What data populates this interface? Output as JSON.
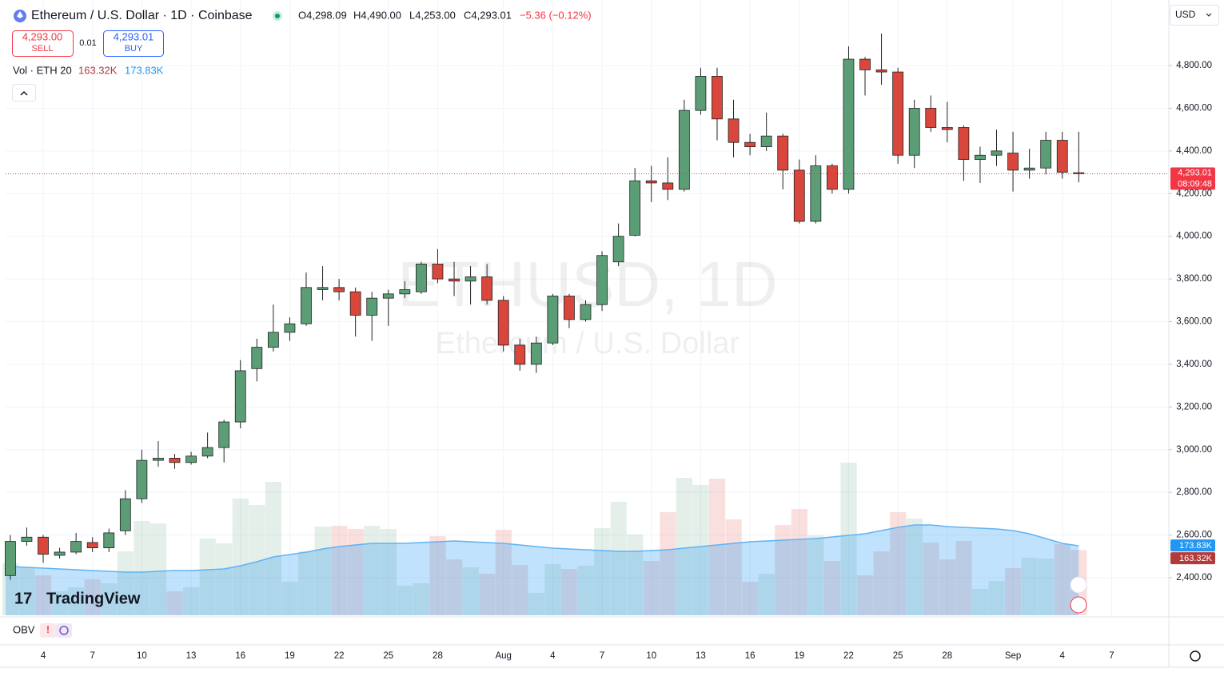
{
  "header": {
    "symbol": "Ethereum / U.S. Dollar · 1D · Coinbase",
    "open": "O4,298.09",
    "high": "H4,490.00",
    "low": "L4,253.00",
    "close": "C4,293.01",
    "change": "−5.36 (−0.12%)",
    "sell_price": "4,293.00",
    "sell": "SELL",
    "spread": "0.01",
    "buy_price": "4,293.01",
    "buy": "BUY",
    "volume_title": "Vol · ETH 20",
    "volume": "163.32K",
    "volume_ma": "173.83K",
    "currency": "USD",
    "watermark_symbol": "ETHUSD, 1D",
    "watermark_name": "Ethereum / U.S. Dollar",
    "brand": "TradingView",
    "indicator": "OBV",
    "countdown": "08:09:48"
  },
  "chart_data": {
    "type": "candlestick",
    "categories": [
      null,
      null,
      "4",
      null,
      null,
      "7",
      null,
      null,
      "10",
      null,
      null,
      "13",
      null,
      null,
      "16",
      null,
      null,
      "19",
      null,
      null,
      "22",
      null,
      null,
      "25",
      null,
      null,
      "28",
      null,
      null,
      null,
      "Aug",
      null,
      null,
      "4",
      null,
      null,
      "7",
      null,
      null,
      "10",
      null,
      null,
      "13",
      null,
      null,
      "16",
      null,
      null,
      "19",
      null,
      null,
      "22",
      null,
      null,
      "25",
      null,
      null,
      "28",
      null,
      null,
      null,
      "Sep",
      null,
      null,
      "4",
      null
    ],
    "forward_categories": [
      null,
      "7"
    ],
    "open": [
      2410,
      2570,
      2590,
      2505,
      2520,
      2565,
      2540,
      2620,
      2770,
      2950,
      2960,
      2940,
      2970,
      3010,
      3130,
      3380,
      3480,
      3550,
      3590,
      3750,
      3760,
      3740,
      3630,
      3710,
      3730,
      3740,
      3870,
      3800,
      3790,
      3810,
      3700,
      3490,
      3400,
      3500,
      3720,
      3610,
      3680,
      3880,
      4005,
      4260,
      4250,
      4220,
      4590,
      4750,
      4550,
      4440,
      4420,
      4470,
      4310,
      4070,
      4330,
      4220,
      4830,
      4780,
      4770,
      4380,
      4600,
      4510,
      4510,
      4360,
      4380,
      4390,
      4310,
      4320,
      4450,
      4298.09
    ],
    "high": [
      2600,
      2635,
      2600,
      2540,
      2610,
      2590,
      2630,
      2810,
      3000,
      3040,
      2980,
      2990,
      3080,
      3140,
      3420,
      3520,
      3680,
      3620,
      3830,
      3860,
      3800,
      3760,
      3740,
      3750,
      3790,
      3880,
      3940,
      3880,
      3860,
      3870,
      3720,
      3520,
      3530,
      3730,
      3730,
      3700,
      3930,
      4060,
      4320,
      4330,
      4370,
      4640,
      4790,
      4790,
      4640,
      4480,
      4580,
      4480,
      4360,
      4380,
      4340,
      4890,
      4840,
      4950,
      4790,
      4640,
      4660,
      4630,
      4520,
      4420,
      4500,
      4490,
      4410,
      4490,
      4490,
      4490
    ],
    "low": [
      2390,
      2550,
      2470,
      2490,
      2510,
      2520,
      2520,
      2600,
      2750,
      2920,
      2910,
      2930,
      2960,
      2940,
      3100,
      3320,
      3460,
      3510,
      3580,
      3700,
      3700,
      3530,
      3510,
      3580,
      3710,
      3730,
      3780,
      3720,
      3680,
      3680,
      3460,
      3370,
      3360,
      3490,
      3570,
      3600,
      3650,
      3860,
      4000,
      4160,
      4170,
      4210,
      4570,
      4450,
      4370,
      4380,
      4400,
      4220,
      4060,
      4060,
      4200,
      4200,
      4660,
      4710,
      4340,
      4320,
      4490,
      4440,
      4260,
      4250,
      4330,
      4210,
      4270,
      4290,
      4270,
      4253
    ],
    "close": [
      2570,
      2590,
      2510,
      2520,
      2570,
      2540,
      2610,
      2770,
      2950,
      2960,
      2940,
      2970,
      3010,
      3130,
      3370,
      3480,
      3550,
      3590,
      3760,
      3760,
      3740,
      3630,
      3710,
      3730,
      3750,
      3870,
      3800,
      3790,
      3810,
      3700,
      3490,
      3400,
      3500,
      3720,
      3610,
      3680,
      3910,
      4000,
      4260,
      4250,
      4220,
      4590,
      4750,
      4550,
      4440,
      4420,
      4470,
      4310,
      4070,
      4330,
      4220,
      4830,
      4780,
      4770,
      4380,
      4600,
      4510,
      4500,
      4360,
      4380,
      4400,
      4310,
      4320,
      4450,
      4300,
      4293.01
    ],
    "volume": [
      130,
      120,
      100,
      60,
      70,
      90,
      80,
      160,
      236,
      230,
      60,
      70,
      192,
      180,
      292,
      276,
      334,
      84,
      160,
      222,
      224,
      216,
      224,
      216,
      74,
      80,
      198,
      140,
      120,
      104,
      214,
      126,
      56,
      128,
      116,
      124,
      218,
      284,
      202,
      136,
      258,
      344,
      326,
      342,
      240,
      84,
      104,
      226,
      266,
      200,
      136,
      382,
      100,
      160,
      258,
      242,
      182,
      140,
      186,
      66,
      86,
      118,
      144,
      142,
      178,
      163.32
    ],
    "volume_ma": [
      122,
      120,
      118,
      116,
      114,
      112,
      110,
      108,
      108,
      110,
      112,
      112,
      114,
      116,
      124,
      134,
      146,
      152,
      158,
      166,
      172,
      176,
      180,
      180,
      180,
      182,
      184,
      186,
      184,
      182,
      180,
      176,
      172,
      168,
      166,
      164,
      162,
      160,
      160,
      162,
      164,
      168,
      172,
      176,
      180,
      184,
      186,
      188,
      190,
      192,
      196,
      200,
      204,
      212,
      220,
      226,
      226,
      222,
      220,
      218,
      216,
      212,
      204,
      192,
      180,
      173.83
    ],
    "up_color": "#5b9e76",
    "down_color": "#d9463b",
    "volume_ma_color": "#5fb3f5",
    "volume_ylim": [
      0,
      1480
    ],
    "ylim": [
      2224,
      4995
    ],
    "yticks": [
      {
        "value": 2400,
        "label": "2,400.00"
      },
      {
        "value": 2600,
        "label": "2,600.00"
      },
      {
        "value": 2800,
        "label": "2,800.00"
      },
      {
        "value": 3000,
        "label": "3,000.00"
      },
      {
        "value": 3200,
        "label": "3,200.00"
      },
      {
        "value": 3400,
        "label": "3,400.00"
      },
      {
        "value": 3600,
        "label": "3,600.00"
      },
      {
        "value": 3800,
        "label": "3,800.00"
      },
      {
        "value": 4000,
        "label": "4,000.00"
      },
      {
        "value": 4200,
        "label": "4,200.00"
      },
      {
        "value": 4400,
        "label": "4,400.00"
      },
      {
        "value": 4600,
        "label": "4,600.00"
      },
      {
        "value": 4800,
        "label": "4,800.00"
      }
    ],
    "last_price": {
      "value": 4293.01,
      "label": "4,293.01"
    },
    "grid": true
  }
}
